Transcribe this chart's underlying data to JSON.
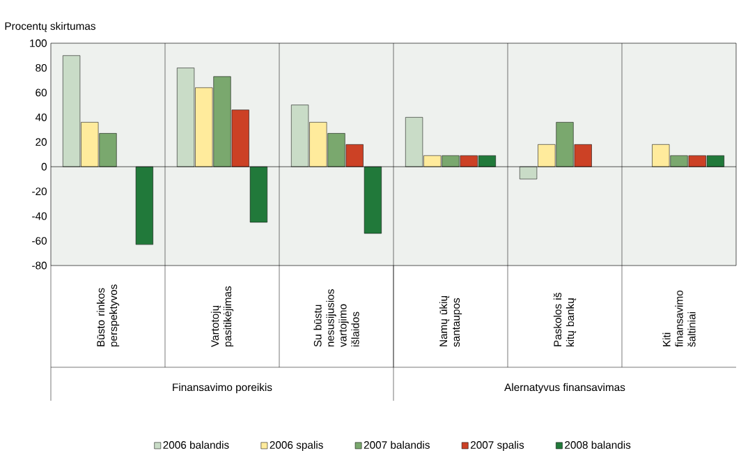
{
  "chart_data": {
    "type": "bar",
    "ylabel": "Procentų skirtumas",
    "categories": [
      "Būsto rinkos perspektyvos",
      "Vartotojų pasitikėjimas",
      "Su būstu nesusijusios vartojimo išlaidos",
      "Namų ūkių santaupos",
      "Paskolos iš kitų bankų",
      "Kiti finansavimo šaltiniai"
    ],
    "series": [
      {
        "name": "2006 balandis",
        "color": "#c9dcc7",
        "values": [
          90,
          80,
          50,
          40,
          -10,
          null
        ]
      },
      {
        "name": "2006 spalis",
        "color": "#ffeb9c",
        "values": [
          36,
          64,
          36,
          9,
          18,
          18
        ]
      },
      {
        "name": "2007 balandis",
        "color": "#7aa86e",
        "values": [
          27,
          73,
          27,
          9,
          36,
          9
        ]
      },
      {
        "name": "2007 spalis",
        "color": "#cc4125",
        "values": [
          null,
          46,
          18,
          9,
          18,
          9
        ]
      },
      {
        "name": "2008 balandis",
        "color": "#21793a",
        "values": [
          -63,
          -45,
          -54,
          9,
          null,
          9
        ]
      }
    ],
    "ylim": [
      -80,
      100
    ],
    "yticks": [
      -80,
      -60,
      -40,
      -20,
      0,
      20,
      40,
      60,
      80,
      100
    ],
    "legend": "bottom",
    "annotations": [
      "Finansavimo poreikis",
      "Alernatyvus finansavimas"
    ]
  }
}
